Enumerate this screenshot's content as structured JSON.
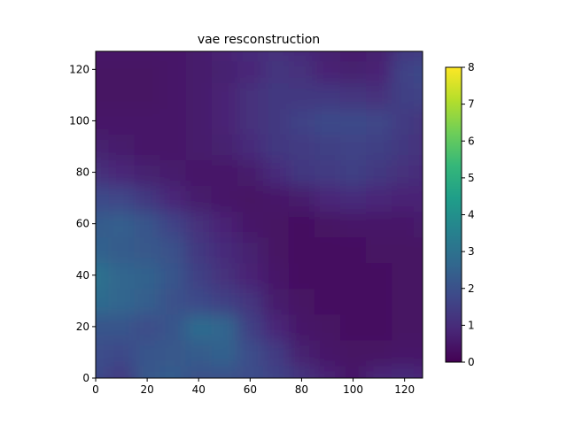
{
  "chart_data": {
    "type": "heatmap",
    "title": "vae resconstruction",
    "xlabel": "",
    "ylabel": "",
    "xlim": [
      0,
      127
    ],
    "ylim": [
      0,
      127
    ],
    "x_ticks": [
      0,
      20,
      40,
      60,
      80,
      100,
      120
    ],
    "y_ticks": [
      0,
      20,
      40,
      60,
      80,
      100,
      120
    ],
    "y_origin": "lower",
    "colormap": "viridis",
    "color_range": [
      0,
      8
    ],
    "colorbar_ticks": [
      0,
      1,
      2,
      3,
      4,
      5,
      6,
      7,
      8
    ],
    "grid": false,
    "grid_x": [
      0,
      10,
      20,
      30,
      40,
      50,
      60,
      70,
      80,
      90,
      100,
      110,
      120,
      127
    ],
    "grid_y": [
      0,
      10,
      20,
      30,
      40,
      50,
      60,
      70,
      80,
      90,
      100,
      110,
      120,
      127
    ],
    "values": [
      [
        1.8,
        1.4,
        2.2,
        2.3,
        2.0,
        2.0,
        1.9,
        1.6,
        1.2,
        0.8,
        0.5,
        0.9,
        1.0,
        0.9
      ],
      [
        1.9,
        1.8,
        2.1,
        2.2,
        2.3,
        2.5,
        1.9,
        1.4,
        0.7,
        0.5,
        0.4,
        0.4,
        0.5,
        0.5
      ],
      [
        2.1,
        2.1,
        1.9,
        2.1,
        2.8,
        2.6,
        1.5,
        0.9,
        0.5,
        0.4,
        0.3,
        0.3,
        0.4,
        0.4
      ],
      [
        2.8,
        2.6,
        2.4,
        2.0,
        1.8,
        1.5,
        1.2,
        0.6,
        0.4,
        0.3,
        0.3,
        0.3,
        0.4,
        0.4
      ],
      [
        3.0,
        2.6,
        2.5,
        2.1,
        1.5,
        1.1,
        0.8,
        0.5,
        0.3,
        0.3,
        0.3,
        0.3,
        0.4,
        0.4
      ],
      [
        2.5,
        2.3,
        2.2,
        2.0,
        1.3,
        1.0,
        0.7,
        0.4,
        0.3,
        0.3,
        0.3,
        0.4,
        0.4,
        0.4
      ],
      [
        2.3,
        2.4,
        2.1,
        1.6,
        1.1,
        0.8,
        0.5,
        0.4,
        0.3,
        0.4,
        0.5,
        0.5,
        0.5,
        0.6
      ],
      [
        1.8,
        1.7,
        1.3,
        0.9,
        0.6,
        0.5,
        0.4,
        0.5,
        0.6,
        0.9,
        1.0,
        0.9,
        0.8,
        0.8
      ],
      [
        1.1,
        0.9,
        0.7,
        0.6,
        0.5,
        0.5,
        0.6,
        1.0,
        1.3,
        1.4,
        1.5,
        1.3,
        1.1,
        1.0
      ],
      [
        0.7,
        0.6,
        0.5,
        0.5,
        0.6,
        0.7,
        1.0,
        1.3,
        1.4,
        1.5,
        1.6,
        1.5,
        1.3,
        1.1
      ],
      [
        0.5,
        0.5,
        0.5,
        0.5,
        0.6,
        0.8,
        1.1,
        1.3,
        1.6,
        1.8,
        1.8,
        1.7,
        1.4,
        1.2
      ],
      [
        0.4,
        0.4,
        0.4,
        0.5,
        0.6,
        0.8,
        1.1,
        1.3,
        1.3,
        1.3,
        1.2,
        1.1,
        1.5,
        1.6
      ],
      [
        0.4,
        0.4,
        0.4,
        0.5,
        0.6,
        0.7,
        0.9,
        1.2,
        1.1,
        0.8,
        0.7,
        0.8,
        1.6,
        1.8
      ],
      [
        0.5,
        0.5,
        0.5,
        0.5,
        0.6,
        0.8,
        1.0,
        1.1,
        1.0,
        0.7,
        0.6,
        0.7,
        1.3,
        1.4
      ]
    ]
  }
}
